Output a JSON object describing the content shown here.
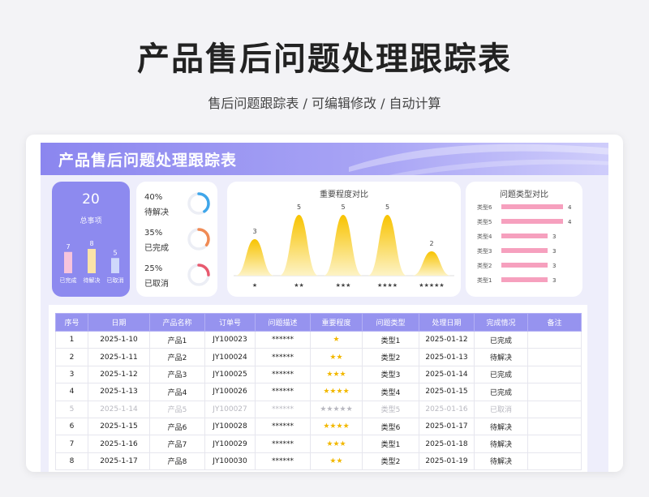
{
  "hero": {
    "title": "产品售后问题处理跟踪表",
    "subtitle": "售后问题跟踪表 /  可编辑修改  / 自动计算"
  },
  "sheet": {
    "banner_title": "产品售后问题处理跟踪表"
  },
  "summary": {
    "total": "20",
    "total_label": "总事项",
    "bars": [
      {
        "label": "已完成",
        "value": "7",
        "count": 7,
        "color": "#f7c4dc"
      },
      {
        "label": "待解决",
        "value": "8",
        "count": 8,
        "color": "#fbe3a8"
      },
      {
        "label": "已取消",
        "value": "5",
        "count": 5,
        "color": "#cfd8fb"
      }
    ]
  },
  "percentages": [
    {
      "pct": "40%",
      "label": "待解决",
      "fraction": 0.4,
      "color": "#3fa6ea"
    },
    {
      "pct": "35%",
      "label": "已完成",
      "fraction": 0.35,
      "color": "#f08b55"
    },
    {
      "pct": "25%",
      "label": "已取消",
      "fraction": 0.25,
      "color": "#e85a6f"
    }
  ],
  "chart_data": [
    {
      "type": "area",
      "title": "重要程度对比",
      "categories": [
        "★",
        "★★",
        "★★★",
        "★★★★",
        "★★★★★"
      ],
      "values": [
        3,
        5,
        5,
        5,
        2
      ],
      "ylim": [
        0,
        5
      ],
      "colors": {
        "top": "#f8c300",
        "bottom": "#fdf3c6"
      }
    },
    {
      "type": "bar",
      "title": "问题类型对比",
      "categories": [
        "类型6",
        "类型5",
        "类型4",
        "类型3",
        "类型2",
        "类型1"
      ],
      "values": [
        4,
        4,
        3,
        3,
        3,
        3
      ],
      "xlim": [
        0,
        4
      ],
      "color": "#f58fb3"
    }
  ],
  "table": {
    "headers": [
      "序号",
      "日期",
      "产品名称",
      "订单号",
      "问题描述",
      "重要程度",
      "问题类型",
      "处理日期",
      "完成情况",
      "备注"
    ],
    "rows": [
      {
        "no": "1",
        "date": "2025-1-10",
        "product": "产品1",
        "order": "JY100023",
        "desc": "******",
        "stars": "★",
        "type": "类型1",
        "handled": "2025-01-12",
        "status": "已完成",
        "note": "",
        "dim": false
      },
      {
        "no": "2",
        "date": "2025-1-11",
        "product": "产品2",
        "order": "JY100024",
        "desc": "******",
        "stars": "★★",
        "type": "类型2",
        "handled": "2025-01-13",
        "status": "待解决",
        "note": "",
        "dim": false
      },
      {
        "no": "3",
        "date": "2025-1-12",
        "product": "产品3",
        "order": "JY100025",
        "desc": "******",
        "stars": "★★★",
        "type": "类型3",
        "handled": "2025-01-14",
        "status": "已完成",
        "note": "",
        "dim": false
      },
      {
        "no": "4",
        "date": "2025-1-13",
        "product": "产品4",
        "order": "JY100026",
        "desc": "******",
        "stars": "★★★★",
        "type": "类型4",
        "handled": "2025-01-15",
        "status": "已完成",
        "note": "",
        "dim": false
      },
      {
        "no": "5",
        "date": "2025-1-14",
        "product": "产品5",
        "order": "JY100027",
        "desc": "******",
        "stars": "★★★★★",
        "type": "类型5",
        "handled": "2025-01-16",
        "status": "已取消",
        "note": "",
        "dim": true
      },
      {
        "no": "6",
        "date": "2025-1-15",
        "product": "产品6",
        "order": "JY100028",
        "desc": "******",
        "stars": "★★★★",
        "type": "类型6",
        "handled": "2025-01-17",
        "status": "待解决",
        "note": "",
        "dim": false
      },
      {
        "no": "7",
        "date": "2025-1-16",
        "product": "产品7",
        "order": "JY100029",
        "desc": "******",
        "stars": "★★★",
        "type": "类型1",
        "handled": "2025-01-18",
        "status": "待解决",
        "note": "",
        "dim": false
      },
      {
        "no": "8",
        "date": "2025-1-17",
        "product": "产品8",
        "order": "JY100030",
        "desc": "******",
        "stars": "★★",
        "type": "类型2",
        "handled": "2025-01-19",
        "status": "待解决",
        "note": "",
        "dim": false
      }
    ]
  }
}
